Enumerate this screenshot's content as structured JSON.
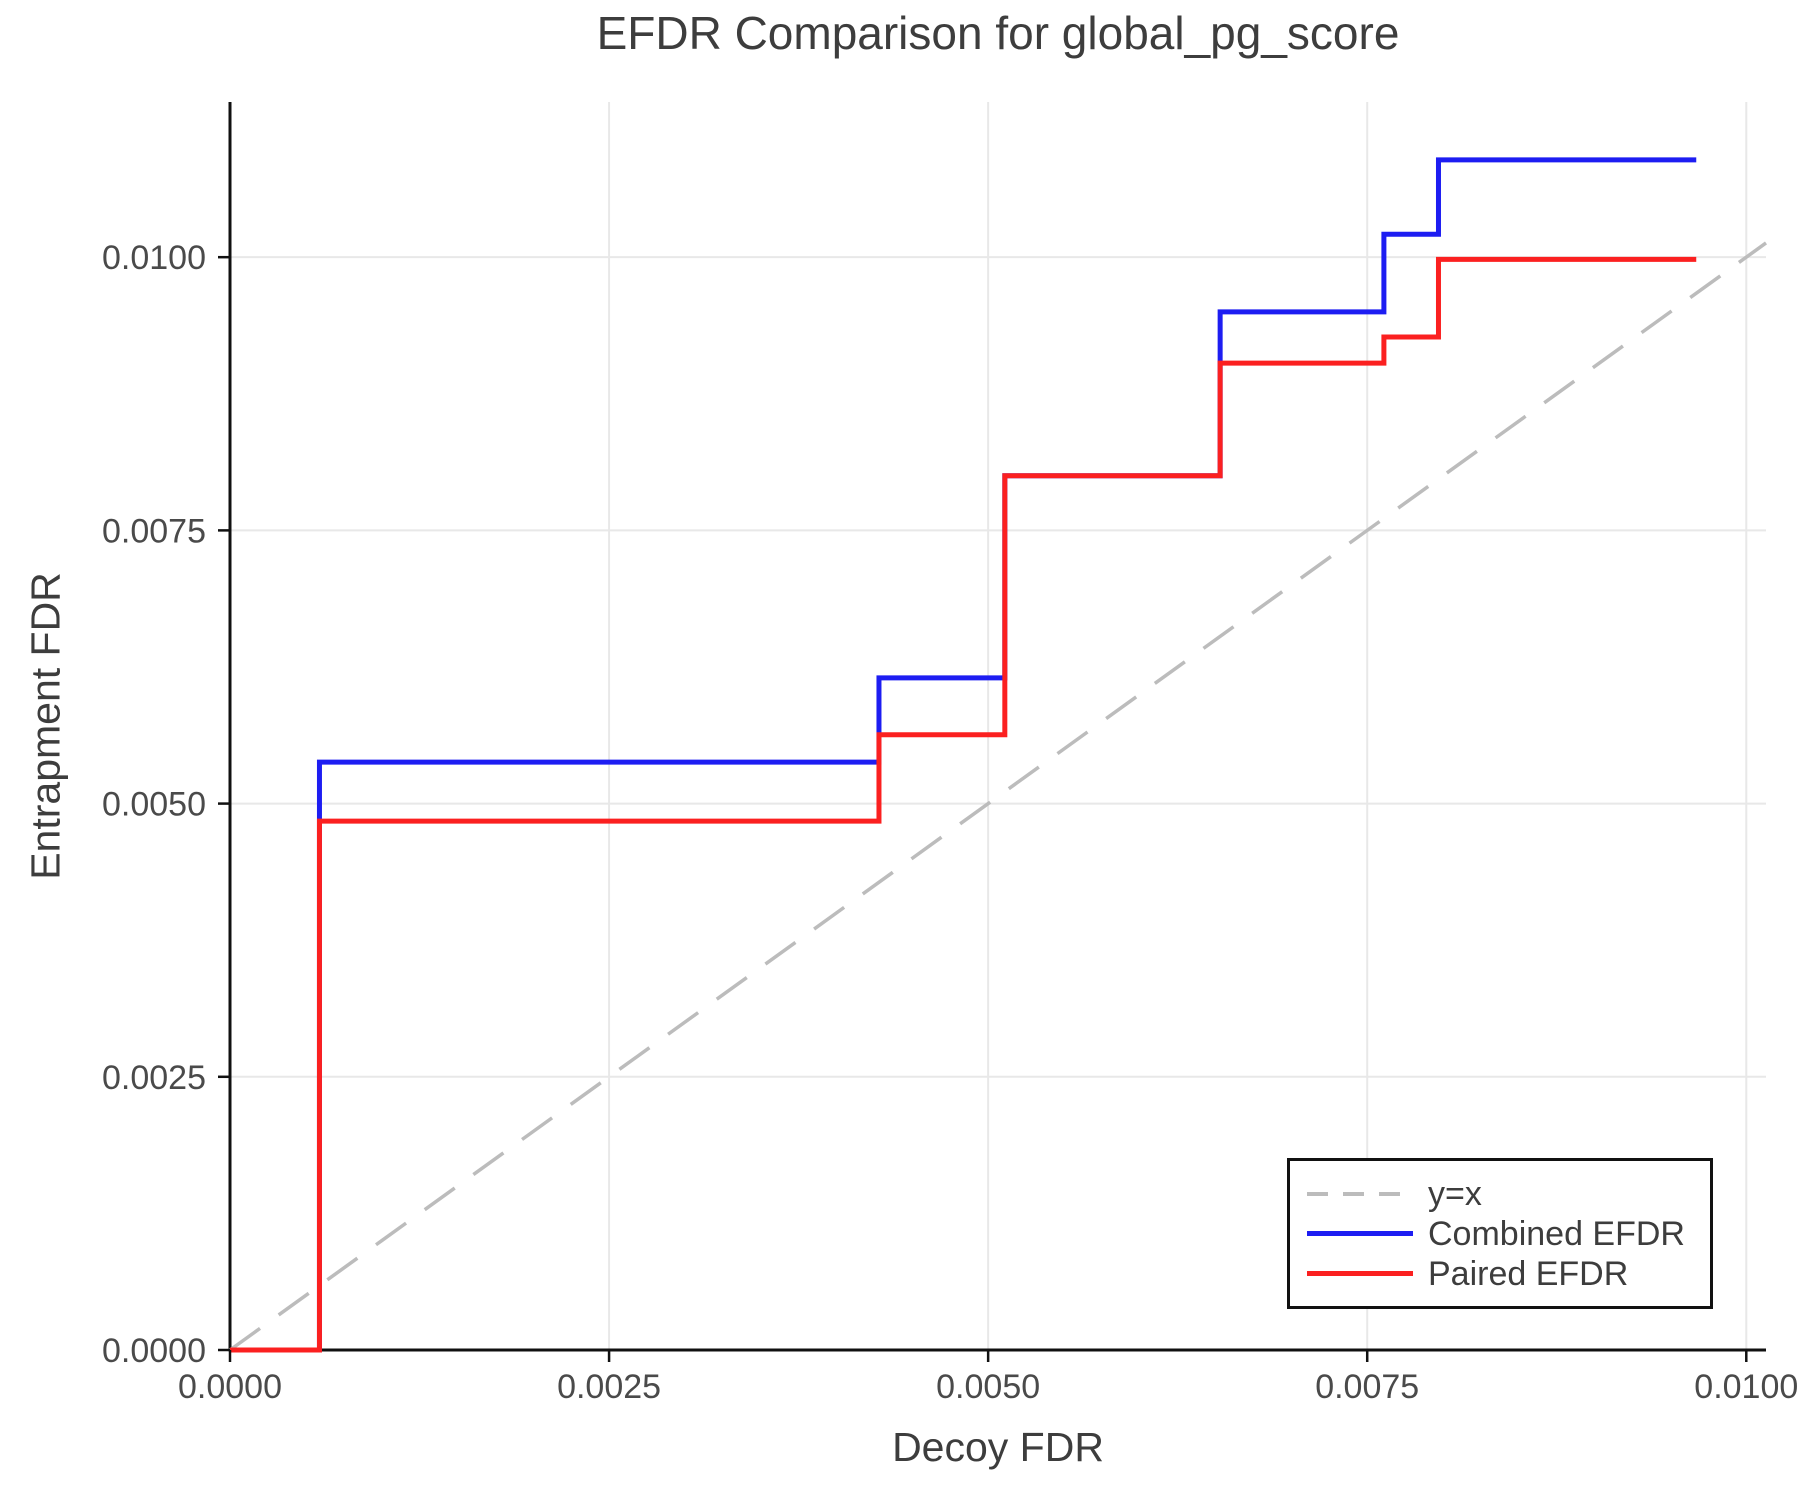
{
  "chart_data": {
    "type": "line",
    "subtype": "step",
    "title": "EFDR Comparison for global_pg_score",
    "xlabel": "Decoy FDR",
    "ylabel": "Entrapment FDR",
    "xlim": [
      0,
      0.01013
    ],
    "ylim": [
      0,
      0.01142
    ],
    "xticks": [
      0,
      0.0025,
      0.005,
      0.0075,
      0.01
    ],
    "xtick_labels": [
      "0.0000",
      "0.0025",
      "0.0050",
      "0.0075",
      "0.0100"
    ],
    "yticks": [
      0,
      0.0025,
      0.005,
      0.0075,
      0.01
    ],
    "ytick_labels": [
      "0.0000",
      "0.0025",
      "0.0050",
      "0.0075",
      "0.0100"
    ],
    "grid": true,
    "grid_color": "#e8e8e8",
    "spine_color": "#111111",
    "tick_label_color": "#4a4a4a",
    "legend_position": "lower right",
    "series": [
      {
        "name": "y=x",
        "style": "dashed",
        "color": "#bcbcbc",
        "width": 3.5,
        "points": [
          [
            0,
            0
          ],
          [
            0.01013,
            0.01013
          ]
        ]
      },
      {
        "name": "Combined EFDR",
        "style": "solid",
        "color": "#1d1df2",
        "width": 5,
        "points": [
          [
            0,
            0
          ],
          [
            0.00059,
            0
          ],
          [
            0.00059,
            0.00538
          ],
          [
            0.00428,
            0.00538
          ],
          [
            0.00428,
            0.00615
          ],
          [
            0.00511,
            0.00615
          ],
          [
            0.00511,
            0.008
          ],
          [
            0.00653,
            0.008
          ],
          [
            0.00653,
            0.0095
          ],
          [
            0.00761,
            0.0095
          ],
          [
            0.00761,
            0.01021
          ],
          [
            0.00797,
            0.01021
          ],
          [
            0.00797,
            0.01089
          ],
          [
            0.00967,
            0.01089
          ]
        ]
      },
      {
        "name": "Paired EFDR",
        "style": "solid",
        "color": "#fb2020",
        "width": 5,
        "points": [
          [
            0,
            0
          ],
          [
            0.00059,
            0
          ],
          [
            0.00059,
            0.00484
          ],
          [
            0.00428,
            0.00484
          ],
          [
            0.00428,
            0.00563
          ],
          [
            0.00511,
            0.00563
          ],
          [
            0.00511,
            0.008
          ],
          [
            0.00653,
            0.008
          ],
          [
            0.00653,
            0.00903
          ],
          [
            0.00761,
            0.00903
          ],
          [
            0.00761,
            0.00927
          ],
          [
            0.00797,
            0.00927
          ],
          [
            0.00797,
            0.00998
          ],
          [
            0.00967,
            0.00998
          ]
        ]
      }
    ]
  }
}
